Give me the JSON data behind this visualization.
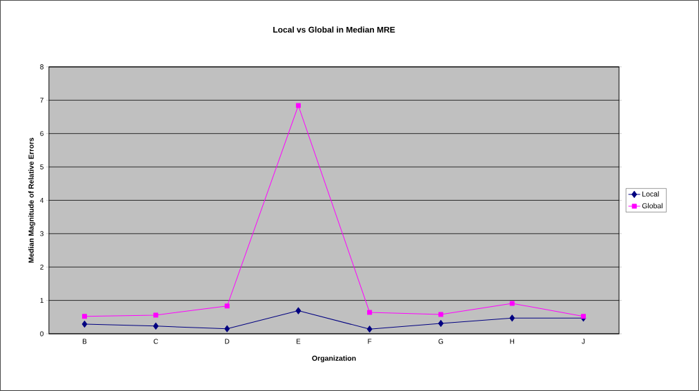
{
  "chart_data": {
    "type": "line",
    "title": "Local vs Global in Median MRE",
    "xlabel": "Organization",
    "ylabel": "Median Magnitude of Relative Errors",
    "categories": [
      "B",
      "C",
      "D",
      "E",
      "F",
      "G",
      "H",
      "J"
    ],
    "series": [
      {
        "name": "Local",
        "color": "#000080",
        "marker": "diamond",
        "values": [
          0.29,
          0.23,
          0.15,
          0.69,
          0.14,
          0.31,
          0.47,
          0.47
        ]
      },
      {
        "name": "Global",
        "color": "#ff00ff",
        "marker": "square",
        "values": [
          0.52,
          0.56,
          0.83,
          6.84,
          0.64,
          0.58,
          0.91,
          0.52
        ]
      }
    ],
    "ylim": [
      0,
      8
    ],
    "yticks": [
      0,
      1,
      2,
      3,
      4,
      5,
      6,
      7,
      8
    ],
    "grid": "y",
    "legend": "right",
    "line_style": "solid"
  }
}
